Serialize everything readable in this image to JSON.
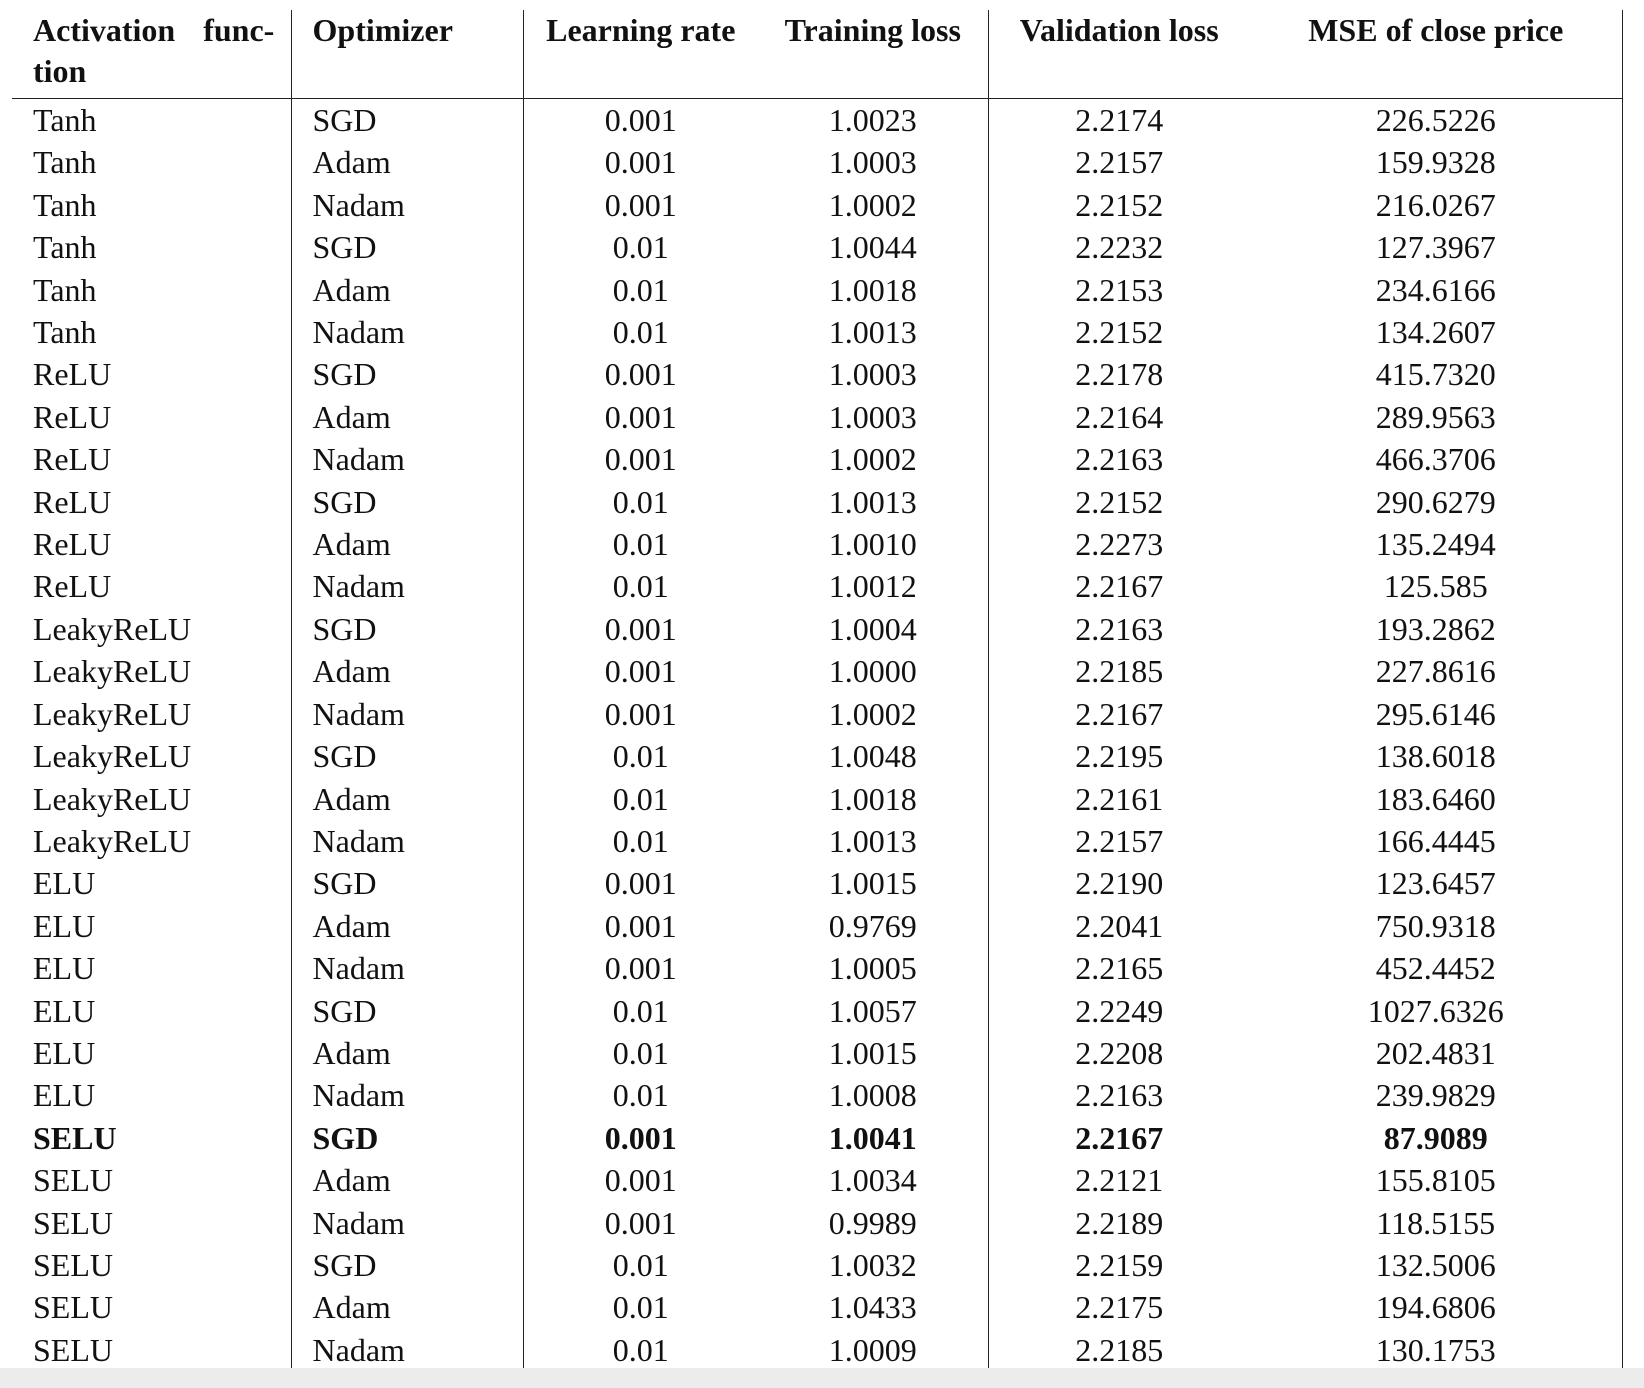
{
  "table": {
    "headers": {
      "activation": "Activation func-\ntion",
      "optimizer": "Optimizer",
      "learning_rate": "Learning rate",
      "training_loss": "Training loss",
      "validation_loss": "Validation loss",
      "mse": "MSE of close price"
    },
    "rows": [
      [
        "Tanh",
        "SGD",
        "0.001",
        "1.0023",
        "2.2174",
        "226.5226"
      ],
      [
        "Tanh",
        "Adam",
        "0.001",
        "1.0003",
        "2.2157",
        "159.9328"
      ],
      [
        "Tanh",
        "Nadam",
        "0.001",
        "1.0002",
        "2.2152",
        "216.0267"
      ],
      [
        "Tanh",
        "SGD",
        "0.01",
        "1.0044",
        "2.2232",
        "127.3967"
      ],
      [
        "Tanh",
        "Adam",
        "0.01",
        "1.0018",
        "2.2153",
        "234.6166"
      ],
      [
        "Tanh",
        "Nadam",
        "0.01",
        "1.0013",
        "2.2152",
        "134.2607"
      ],
      [
        "ReLU",
        "SGD",
        "0.001",
        "1.0003",
        "2.2178",
        "415.7320"
      ],
      [
        "ReLU",
        "Adam",
        "0.001",
        "1.0003",
        "2.2164",
        "289.9563"
      ],
      [
        "ReLU",
        "Nadam",
        "0.001",
        "1.0002",
        "2.2163",
        "466.3706"
      ],
      [
        "ReLU",
        "SGD",
        "0.01",
        "1.0013",
        "2.2152",
        "290.6279"
      ],
      [
        "ReLU",
        "Adam",
        "0.01",
        "1.0010",
        "2.2273",
        "135.2494"
      ],
      [
        "ReLU",
        "Nadam",
        "0.01",
        "1.0012",
        "2.2167",
        "125.585"
      ],
      [
        "LeakyReLU",
        "SGD",
        "0.001",
        "1.0004",
        "2.2163",
        "193.2862"
      ],
      [
        "LeakyReLU",
        "Adam",
        "0.001",
        "1.0000",
        "2.2185",
        "227.8616"
      ],
      [
        "LeakyReLU",
        "Nadam",
        "0.001",
        "1.0002",
        "2.2167",
        "295.6146"
      ],
      [
        "LeakyReLU",
        "SGD",
        "0.01",
        "1.0048",
        "2.2195",
        "138.6018"
      ],
      [
        "LeakyReLU",
        "Adam",
        "0.01",
        "1.0018",
        "2.2161",
        "183.6460"
      ],
      [
        "LeakyReLU",
        "Nadam",
        "0.01",
        "1.0013",
        "2.2157",
        "166.4445"
      ],
      [
        "ELU",
        "SGD",
        "0.001",
        "1.0015",
        "2.2190",
        "123.6457"
      ],
      [
        "ELU",
        "Adam",
        "0.001",
        "0.9769",
        "2.2041",
        "750.9318"
      ],
      [
        "ELU",
        "Nadam",
        "0.001",
        "1.0005",
        "2.2165",
        "452.4452"
      ],
      [
        "ELU",
        "SGD",
        "0.01",
        "1.0057",
        "2.2249",
        "1027.6326"
      ],
      [
        "ELU",
        "Adam",
        "0.01",
        "1.0015",
        "2.2208",
        "202.4831"
      ],
      [
        "ELU",
        "Nadam",
        "0.01",
        "1.0008",
        "2.2163",
        "239.9829"
      ],
      [
        "SELU",
        "SGD",
        "0.001",
        "1.0041",
        "2.2167",
        "87.9089"
      ],
      [
        "SELU",
        "Adam",
        "0.001",
        "1.0034",
        "2.2121",
        "155.8105"
      ],
      [
        "SELU",
        "Nadam",
        "0.001",
        "0.9989",
        "2.2189",
        "118.5155"
      ],
      [
        "SELU",
        "SGD",
        "0.01",
        "1.0032",
        "2.2159",
        "132.5006"
      ],
      [
        "SELU",
        "Adam",
        "0.01",
        "1.0433",
        "2.2175",
        "194.6806"
      ],
      [
        "SELU",
        "Nadam",
        "0.01",
        "1.0009",
        "2.2185",
        "130.1753"
      ]
    ],
    "highlight_row": 24
  }
}
